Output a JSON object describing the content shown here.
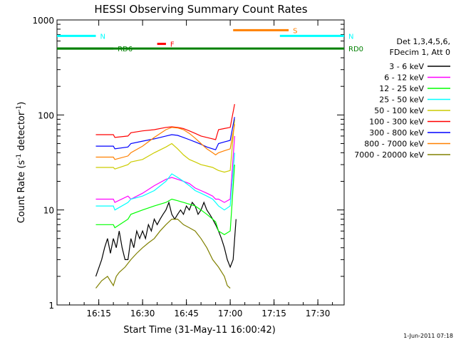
{
  "chart_data": {
    "type": "line",
    "title": "HESSI Observing Summary Count Rates",
    "xlabel": "Start Time (31-May-11 16:00:42)",
    "ylabel": "Count Rate (s",
    "ylabel_sup": "-1",
    "ylabel_mid": " detector",
    "ylabel_end": ")",
    "xlim_min": [
      0,
      42
    ],
    "xlim_max": [
      99
    ],
    "ylim": [
      1,
      1000
    ],
    "yscale": "log",
    "x_ticks": [
      {
        "min": 15,
        "label": "16:15"
      },
      {
        "min": 30,
        "label": "16:30"
      },
      {
        "min": 45,
        "label": "16:45"
      },
      {
        "min": 60,
        "label": "17:00"
      },
      {
        "min": 75,
        "label": "17:15"
      },
      {
        "min": 90,
        "label": "17:30"
      }
    ],
    "y_ticks": [
      {
        "v": 1,
        "label": "1"
      },
      {
        "v": 10,
        "label": "10"
      },
      {
        "v": 100,
        "label": "100"
      },
      {
        "v": 1000,
        "label": "1000"
      }
    ],
    "legend_header": [
      "Det 1,3,4,5,6,",
      "FDecim 1, Att 0"
    ],
    "legend_position": "right",
    "series": [
      {
        "name": "3 - 6 keV",
        "color": "#000000",
        "x": [
          14,
          16,
          17,
          18,
          19,
          20,
          21,
          22,
          23,
          24,
          25,
          26,
          27,
          28,
          29,
          30,
          31,
          32,
          33,
          34,
          35,
          36,
          37,
          38,
          39,
          40,
          41,
          42,
          43,
          44,
          45,
          46,
          47,
          48,
          49,
          50,
          51,
          52,
          53,
          54,
          55,
          56,
          57,
          58,
          59,
          60,
          61,
          62
        ],
        "y": [
          2,
          3,
          4,
          5,
          3.5,
          5,
          4,
          6,
          4,
          3,
          3,
          5,
          4,
          6,
          5,
          6,
          5,
          7,
          6,
          8,
          7,
          8,
          9,
          10,
          12,
          9,
          8,
          9,
          10,
          9,
          11,
          10,
          12,
          11,
          9,
          10,
          12,
          10,
          9,
          8,
          7,
          6,
          5,
          4,
          3,
          2.5,
          3,
          8
        ]
      },
      {
        "name": "6 - 12 keV",
        "color": "#ff00ff",
        "x": [
          14,
          20,
          20.5,
          25,
          26,
          30,
          34,
          38,
          40,
          42,
          44,
          46,
          48,
          50,
          52,
          54,
          55,
          56,
          58,
          60,
          61.5
        ],
        "y": [
          13,
          13,
          12,
          14,
          13,
          15,
          18,
          21,
          22,
          21,
          20,
          19,
          17,
          16,
          15,
          14,
          13,
          13,
          12,
          13,
          60
        ]
      },
      {
        "name": "12 - 25 keV",
        "color": "#00ff00",
        "x": [
          14,
          20,
          20.5,
          25,
          26,
          30,
          34,
          38,
          40,
          42,
          44,
          46,
          48,
          50,
          52,
          54,
          55,
          56,
          58,
          60,
          61.5
        ],
        "y": [
          7,
          7,
          6.5,
          8,
          9,
          10,
          11,
          12,
          13,
          12.5,
          12,
          11.5,
          11,
          10,
          9,
          8,
          7.5,
          6,
          5.5,
          6,
          30
        ]
      },
      {
        "name": "25 - 50 keV",
        "color": "#00ffff",
        "x": [
          14,
          20,
          20.5,
          25,
          26,
          30,
          34,
          38,
          40,
          42,
          44,
          46,
          48,
          50,
          52,
          54,
          55,
          56,
          58,
          60,
          61.5
        ],
        "y": [
          11,
          11,
          10,
          12,
          13,
          14,
          16,
          20,
          24,
          22,
          20,
          18,
          16,
          15,
          14,
          13,
          12,
          11,
          10,
          11,
          40
        ]
      },
      {
        "name": "50 - 100 keV",
        "color": "#cccc00",
        "x": [
          14,
          20,
          20.5,
          25,
          26,
          30,
          34,
          38,
          40,
          42,
          44,
          46,
          48,
          50,
          52,
          54,
          55,
          56,
          58,
          60,
          61.5
        ],
        "y": [
          28,
          28,
          27,
          30,
          32,
          34,
          40,
          46,
          50,
          44,
          38,
          34,
          32,
          30,
          29,
          28,
          27,
          26,
          25,
          26,
          90
        ]
      },
      {
        "name": "100 - 300 keV",
        "color": "#ff0000",
        "x": [
          14,
          20,
          20.5,
          25,
          26,
          30,
          34,
          38,
          40,
          42,
          44,
          46,
          48,
          50,
          52,
          54,
          55,
          56,
          58,
          60,
          61.5
        ],
        "y": [
          62,
          62,
          58,
          60,
          65,
          68,
          70,
          74,
          75,
          74,
          72,
          68,
          64,
          60,
          58,
          56,
          55,
          70,
          72,
          74,
          130
        ]
      },
      {
        "name": "300 - 800 keV",
        "color": "#0000ff",
        "x": [
          14,
          20,
          20.5,
          25,
          26,
          30,
          34,
          38,
          40,
          42,
          44,
          46,
          48,
          50,
          52,
          54,
          55,
          56,
          58,
          60,
          61.5
        ],
        "y": [
          47,
          47,
          44,
          46,
          50,
          53,
          56,
          60,
          62,
          61,
          58,
          55,
          52,
          49,
          46,
          44,
          43,
          50,
          52,
          54,
          95
        ]
      },
      {
        "name": "800 - 7000 keV",
        "color": "#ff8000",
        "x": [
          14,
          20,
          20.5,
          25,
          26,
          30,
          34,
          38,
          40,
          42,
          44,
          46,
          48,
          50,
          52,
          54,
          55,
          56,
          58,
          60,
          61.5
        ],
        "y": [
          36,
          36,
          34,
          37,
          40,
          47,
          58,
          70,
          74,
          73,
          70,
          64,
          57,
          50,
          44,
          40,
          38,
          40,
          42,
          44,
          80
        ]
      },
      {
        "name": "7000 - 20000 keV",
        "color": "#808000",
        "x": [
          14,
          16,
          18,
          20,
          21,
          22,
          24,
          26,
          28,
          30,
          32,
          34,
          36,
          38,
          40,
          42,
          44,
          46,
          48,
          50,
          52,
          54,
          56,
          58,
          59,
          60
        ],
        "y": [
          1.5,
          1.8,
          2,
          1.6,
          2,
          2.2,
          2.5,
          3,
          3.5,
          4,
          4.5,
          5,
          6,
          7,
          8,
          8,
          7,
          6.5,
          6,
          5,
          4,
          3,
          2.5,
          2,
          1.6,
          1.5
        ]
      }
    ],
    "flags": [
      {
        "label": "N",
        "color": "#00ffff",
        "x1": 0,
        "x2": 14,
        "y": 680
      },
      {
        "label": "N",
        "color": "#00ffff",
        "x1": 77,
        "x2": 100,
        "y": 680
      },
      {
        "label": "S",
        "color": "#ff8000",
        "x1": 61,
        "x2": 80,
        "y": 780
      },
      {
        "label": "RD0",
        "color": "#008000",
        "x1": 0,
        "x2": 99,
        "y": 500
      },
      {
        "label": "RD6",
        "color": "#008000",
        "x1": 0,
        "x2": 20,
        "y": 500
      },
      {
        "label": "F",
        "color": "#ff0000",
        "x1": 35,
        "x2": 38,
        "y": 560
      }
    ],
    "footer_timestamp": "1-Jun-2011 07:18"
  }
}
